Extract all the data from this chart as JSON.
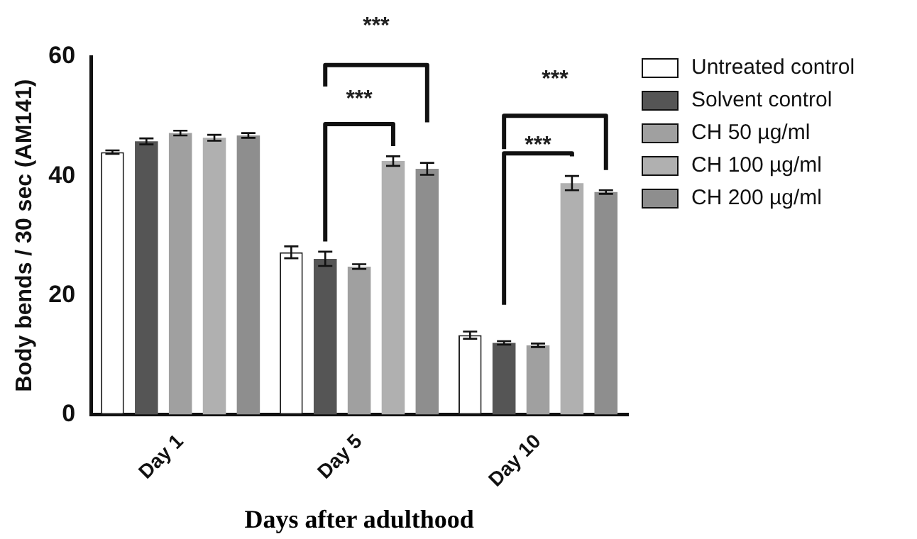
{
  "chart_data": {
    "type": "bar",
    "xlabel": "Days after adulthood",
    "ylabel": "Body bends / 30 sec (AM141)",
    "categories": [
      "Day 1",
      "Day 5",
      "Day 10"
    ],
    "series": [
      {
        "name": "Untreated control",
        "color": "#ffffff",
        "values": [
          44,
          27.2,
          13.3
        ],
        "errors": [
          0.3,
          1,
          0.6
        ]
      },
      {
        "name": "Solvent control",
        "color": "#555555",
        "values": [
          45.8,
          26.1,
          12
        ],
        "errors": [
          0.5,
          1.2,
          0.3
        ]
      },
      {
        "name": "CH 50 µg/ml",
        "color": "#a0a0a0",
        "values": [
          47.2,
          24.8,
          11.6
        ],
        "errors": [
          0.4,
          0.4,
          0.3
        ]
      },
      {
        "name": "CH 100 µg/ml",
        "color": "#b0b0b0",
        "values": [
          46.4,
          42.5,
          38.8
        ],
        "errors": [
          0.5,
          0.8,
          1.2
        ]
      },
      {
        "name": "CH 200 µg/ml",
        "color": "#8e8e8e",
        "values": [
          46.8,
          41.2,
          37.3
        ],
        "errors": [
          0.4,
          1,
          0.3
        ]
      }
    ],
    "ylim": [
      0,
      60
    ],
    "yticks": [
      0,
      20,
      40,
      60
    ],
    "grid": false,
    "legend": "right",
    "annotations": [
      "***",
      "***",
      "***",
      "***"
    ]
  }
}
